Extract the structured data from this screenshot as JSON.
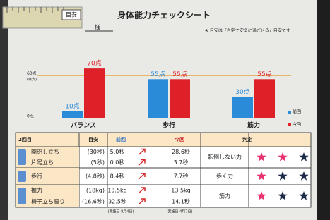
{
  "header": {
    "ruler_label": "目安",
    "title": "身体能力チェックシート",
    "name_suffix": "様",
    "note": "※ 目安は「自宅で安全に過ごせる」目安です"
  },
  "chart": {
    "type": "bar",
    "categories": [
      "バランス",
      "歩行",
      "筋力"
    ],
    "series": [
      {
        "name": "前回",
        "color": "#2a8bd8",
        "values": [
          10,
          55,
          30
        ],
        "value_labels": [
          "10点",
          "55点",
          "30点"
        ]
      },
      {
        "name": "今回",
        "color": "#de2128",
        "values": [
          70,
          55,
          55
        ],
        "value_labels": [
          "70点",
          "55点",
          "55点"
        ]
      }
    ],
    "ylim": [
      0,
      80
    ],
    "yticks": [
      {
        "value": 0,
        "label": "0点"
      },
      {
        "value": 60,
        "label": "60点"
      }
    ],
    "reference_note": "(目安)",
    "reference_color": "#e8b56a"
  },
  "table": {
    "header": [
      "2回目",
      "目安",
      "前回",
      "今回",
      "判定"
    ],
    "groups": [
      {
        "items": [
          [
            "開閉し立ち",
            "(30秒)",
            "5.0秒",
            "28.6秒"
          ],
          [
            "片足立ち",
            "(5秒)",
            "0.0秒",
            "3.7秒"
          ]
        ],
        "judgement": "転倒しない力",
        "stars": [
          "#e8316e",
          "#e8316e",
          "#1d2a4a"
        ]
      },
      {
        "items": [
          [
            "歩行",
            "(4.8秒)",
            "8.4秒",
            "7.7秒"
          ]
        ],
        "judgement": "歩く力",
        "stars": [
          "#e8316e",
          "#1d2a4a",
          "#1d2a4a"
        ]
      },
      {
        "items": [
          [
            "握力",
            "(18kg)",
            "13.5kg",
            "13.5kg"
          ],
          [
            "椅子立ち座り",
            "(16.6秒)",
            "32.5秒",
            "14.1秒"
          ]
        ],
        "judgement": "筋力",
        "stars": [
          "#e8316e",
          "#1d2a4a",
          "#1d2a4a"
        ]
      }
    ],
    "dates": [
      "(実施日 8月4日)",
      "(実施日 4月7日)"
    ]
  }
}
